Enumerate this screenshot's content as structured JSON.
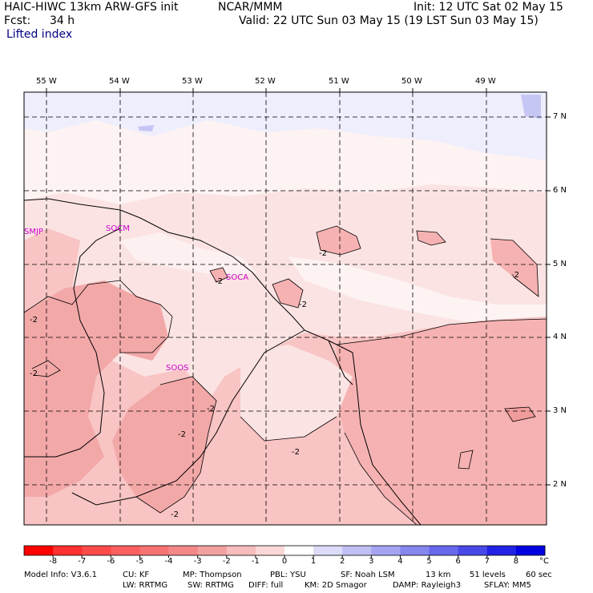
{
  "header": {
    "model": "HAIC-HIWC 13km ARW-GFS init",
    "org": "NCAR/MMM",
    "init": "Init: 12 UTC Sat 02 May 15",
    "fcst_label": "Fcst:",
    "fcst_value": "34 h",
    "valid": "Valid: 22 UTC Sun 03 May 15 (19 LST Sun 03 May 15)",
    "field": "Lifted index"
  },
  "map": {
    "lon_labels": [
      "55 W",
      "54 W",
      "53 W",
      "52 W",
      "51 W",
      "50 W",
      "49 W"
    ],
    "lat_labels": [
      "7 N",
      "6 N",
      "5 N",
      "4 N",
      "3 N",
      "2 N"
    ],
    "stations": [
      "SMJP",
      "SOCM",
      "SOCA",
      "SOOS"
    ],
    "contour_label": "-2",
    "colors": {
      "bg_neutral": "#fdf3f3",
      "light_blue": "#e6e6fb",
      "blue": "#c6c6f5",
      "pink_1": "#fbdada",
      "pink_2": "#f6b2b2",
      "pink_3": "#f19c9c",
      "station": "#cc00cc"
    }
  },
  "colorbar": {
    "ticks": [
      "-8",
      "-7",
      "-6",
      "-5",
      "-4",
      "-3",
      "-2",
      "-1",
      "0",
      "1",
      "2",
      "3",
      "4",
      "5",
      "6",
      "7",
      "8"
    ],
    "unit": "°C",
    "colors": [
      "#ff0000",
      "#ff3030",
      "#ff4a4a",
      "#fb5f5f",
      "#f77373",
      "#f48888",
      "#f3a0a0",
      "#f7bcbc",
      "#fbd8d8",
      "#ffffff",
      "#dcdcf8",
      "#c0c0f5",
      "#a4a4f2",
      "#8686ef",
      "#6868ec",
      "#4848e8",
      "#2222e4",
      "#0000e0"
    ]
  },
  "footer": {
    "line1": [
      "Model Info: V3.6.1",
      "CU: KF",
      "MP: Thompson",
      "PBL: YSU",
      "SF: Noah LSM",
      "13 km",
      "51 levels",
      "60 sec"
    ],
    "line2": [
      "LW: RRTMG",
      "SW: RRTMG",
      "DIFF: full",
      "KM: 2D Smagor",
      "DAMP: Rayleigh3",
      "SFLAY: MM5"
    ]
  }
}
